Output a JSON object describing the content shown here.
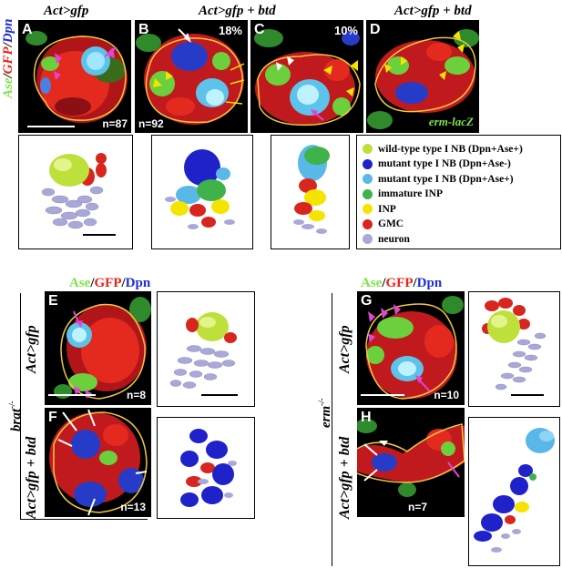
{
  "headers": {
    "col_a": "Act>gfp",
    "col_bc": "Act>gfp + btd",
    "col_d": "Act>gfp + btd"
  },
  "stain_label": {
    "ase": "Ase",
    "sep1": "/",
    "gfp": "GFP",
    "sep2": "/",
    "dpn": "Dpn"
  },
  "panels": {
    "A": {
      "label": "A",
      "n": "n=87"
    },
    "B": {
      "label": "B",
      "n": "n=92",
      "percent": "18%"
    },
    "C": {
      "label": "C",
      "percent": "10%"
    },
    "D": {
      "label": "D",
      "marker": "erm-lacZ"
    },
    "E": {
      "label": "E",
      "n": "n=8",
      "genotype": "Act>gfp"
    },
    "F": {
      "label": "F",
      "n": "n=13",
      "genotype": "Act>gfp + btd"
    },
    "G": {
      "label": "G",
      "n": "n=10",
      "genotype": "Act>gfp"
    },
    "H": {
      "label": "H",
      "n": "n=7",
      "genotype": "Act>gfp + btd"
    }
  },
  "mutants": {
    "brat": "brat",
    "brat_sup": "-/-",
    "erm": "erm",
    "erm_sup": "-/-"
  },
  "legend": [
    {
      "label": "wild-type type I NB (Dpn+Ase+)",
      "color": "#bde03a"
    },
    {
      "label": "mutant type I NB (Dpn+Ase-)",
      "color": "#1f22c8"
    },
    {
      "label": "mutant type I NB (Dpn+Ase+)",
      "color": "#5ab8e8"
    },
    {
      "label": "immature INP",
      "color": "#3fb24a"
    },
    {
      "label": "INP",
      "color": "#f5e400"
    },
    {
      "label": "GMC",
      "color": "#d7261e"
    },
    {
      "label": "neuron",
      "color": "#a9a9d8"
    }
  ],
  "colors": {
    "ase": "#7fe34a",
    "gfp": "#e8231a",
    "dpn": "#1f2fd6",
    "outline": "#f0c640",
    "arrow_magenta": "#e045d8",
    "arrowhead_yellow": "#f5e400"
  }
}
